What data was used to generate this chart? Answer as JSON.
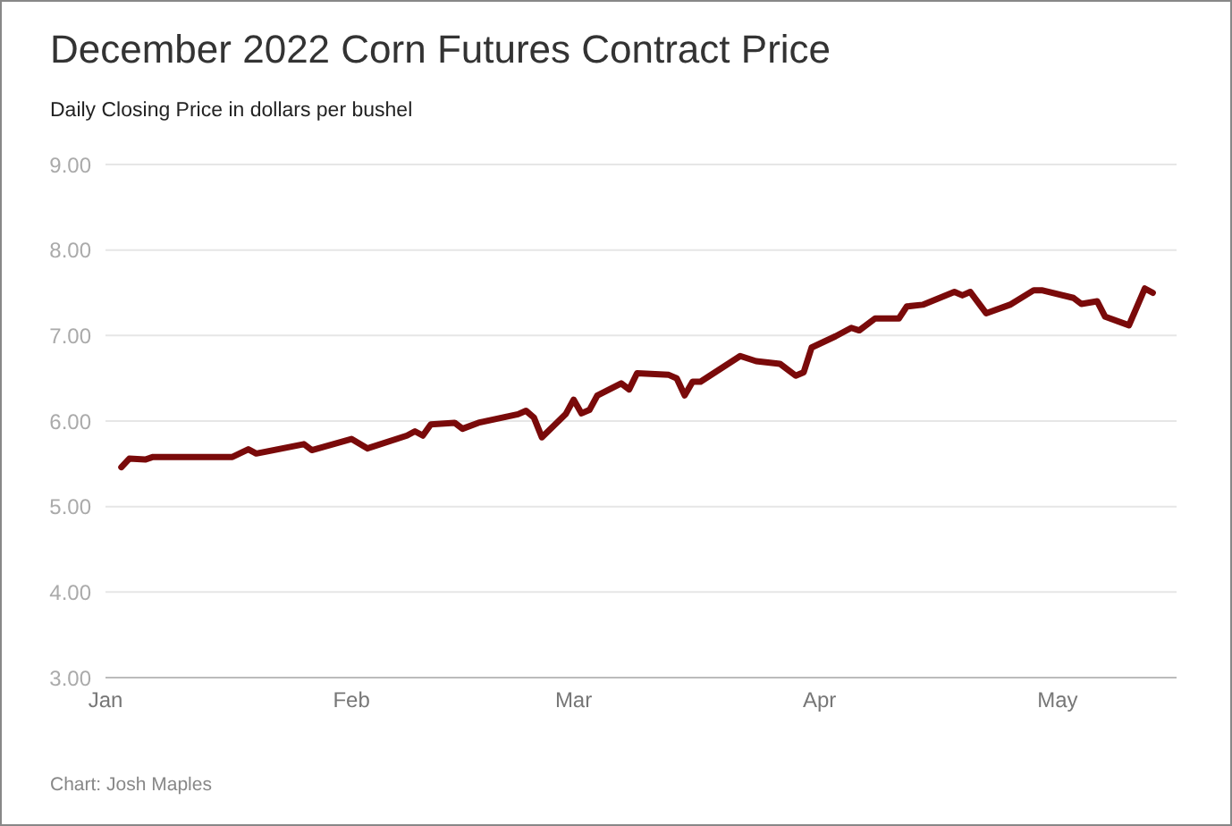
{
  "chart_data": {
    "type": "line",
    "title": "December 2022 Corn Futures Contract Price",
    "subtitle": "Daily Closing Price in dollars per bushel",
    "annotations": [
      "Chart: Josh Maples"
    ],
    "x": [
      "2022-01-03",
      "2022-01-04",
      "2022-01-06",
      "2022-01-07",
      "2022-01-17",
      "2022-01-19",
      "2022-01-20",
      "2022-01-26",
      "2022-01-27",
      "2022-02-01",
      "2022-02-03",
      "2022-02-08",
      "2022-02-09",
      "2022-02-10",
      "2022-02-11",
      "2022-02-14",
      "2022-02-15",
      "2022-02-17",
      "2022-02-22",
      "2022-02-23",
      "2022-02-24",
      "2022-02-25",
      "2022-02-28",
      "2022-03-01",
      "2022-03-02",
      "2022-03-03",
      "2022-03-04",
      "2022-03-07",
      "2022-03-08",
      "2022-03-09",
      "2022-03-13",
      "2022-03-14",
      "2022-03-15",
      "2022-03-16",
      "2022-03-17",
      "2022-03-22",
      "2022-03-24",
      "2022-03-27",
      "2022-03-29",
      "2022-03-30",
      "2022-03-31",
      "2022-04-03",
      "2022-04-05",
      "2022-04-06",
      "2022-04-08",
      "2022-04-11",
      "2022-04-12",
      "2022-04-14",
      "2022-04-18",
      "2022-04-19",
      "2022-04-20",
      "2022-04-22",
      "2022-04-25",
      "2022-04-28",
      "2022-04-29",
      "2022-05-03",
      "2022-05-04",
      "2022-05-06",
      "2022-05-07",
      "2022-05-10",
      "2022-05-12",
      "2022-05-13"
    ],
    "series": [
      {
        "color": "#7a0a0a",
        "values": [
          5.46,
          5.56,
          5.55,
          5.58,
          5.58,
          5.67,
          5.62,
          5.73,
          5.66,
          5.79,
          5.68,
          5.83,
          5.88,
          5.83,
          5.96,
          5.98,
          5.91,
          5.98,
          6.08,
          6.12,
          6.04,
          5.81,
          6.08,
          6.25,
          6.09,
          6.13,
          6.3,
          6.44,
          6.37,
          6.56,
          6.54,
          6.5,
          6.3,
          6.46,
          6.46,
          6.76,
          6.7,
          6.67,
          6.53,
          6.57,
          6.86,
          6.99,
          7.09,
          7.06,
          7.2,
          7.2,
          7.34,
          7.36,
          7.51,
          7.47,
          7.51,
          7.26,
          7.36,
          7.53,
          7.53,
          7.44,
          7.37,
          7.4,
          7.22,
          7.12,
          7.55,
          7.5
        ]
      }
    ],
    "xlim": [
      "2022-01-01",
      "2022-05-16"
    ],
    "xticks": [
      {
        "value": "2022-01-01",
        "label": "Jan"
      },
      {
        "value": "2022-02-01",
        "label": "Feb"
      },
      {
        "value": "2022-03-01",
        "label": "Mar"
      },
      {
        "value": "2022-04-01",
        "label": "Apr"
      },
      {
        "value": "2022-05-01",
        "label": "May"
      }
    ],
    "ylim": [
      3,
      9
    ],
    "yticks": [
      {
        "value": 3,
        "label": "3.00"
      },
      {
        "value": 4,
        "label": "4.00"
      },
      {
        "value": 5,
        "label": "5.00"
      },
      {
        "value": 6,
        "label": "6.00"
      },
      {
        "value": 7,
        "label": "7.00"
      },
      {
        "value": 8,
        "label": "8.00"
      },
      {
        "value": 9,
        "label": "9.00"
      }
    ],
    "grid": "y",
    "legend": false,
    "marker": "none",
    "line_style": "solid"
  }
}
